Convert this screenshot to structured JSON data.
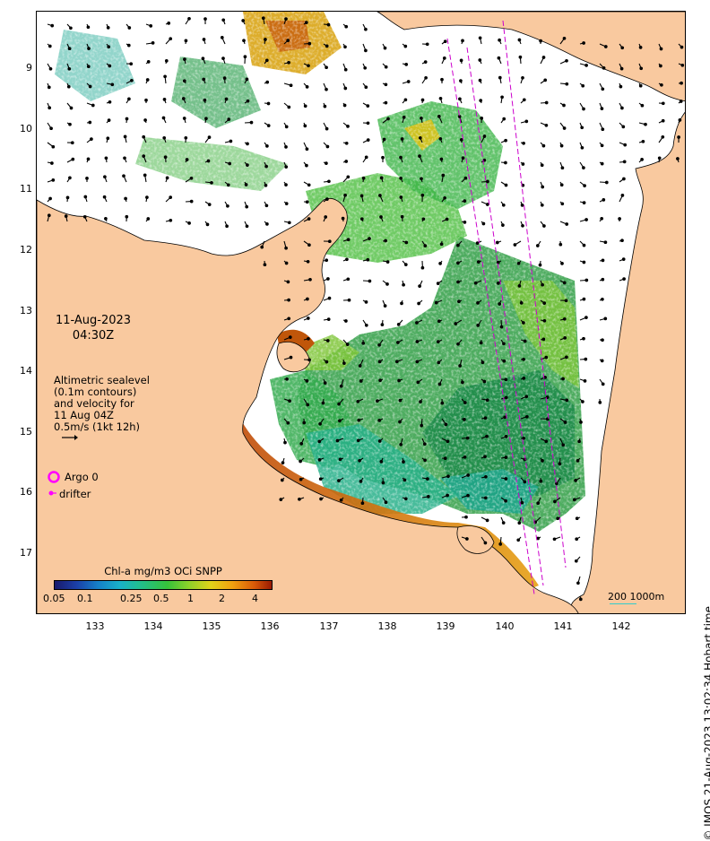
{
  "map": {
    "date": "11-Aug-2023",
    "time": "04:30Z",
    "lat_ticks": [
      "9",
      "10",
      "11",
      "12",
      "13",
      "14",
      "15",
      "16",
      "17"
    ],
    "lon_ticks": [
      "133",
      "134",
      "135",
      "136",
      "137",
      "138",
      "139",
      "140",
      "141",
      "142"
    ],
    "legend_lines": [
      "Altimetric sealevel",
      "(0.1m contours)",
      "and velocity for",
      "11 Aug 04Z",
      "0.5m/s (1kt 12h)"
    ],
    "argo_label": "Argo 0",
    "drifter_label": "drifter",
    "colorbar_title": "Chl-a mg/m3 OCi SNPP",
    "colorbar_ticks": [
      "0.05",
      "0.1",
      "0.25",
      "0.5",
      "1",
      "2",
      "4"
    ],
    "scalebar": "200  1000m",
    "credit": "© IMOS 21-Aug-2023 13:02:34 Hobart time",
    "colors": {
      "land": "#f9c99f",
      "argo": "#ff00ff",
      "track": "#cc00cc",
      "chl_low": "#1a33a0",
      "chl_mid": "#36c23a",
      "chl_high": "#b52a04"
    }
  }
}
